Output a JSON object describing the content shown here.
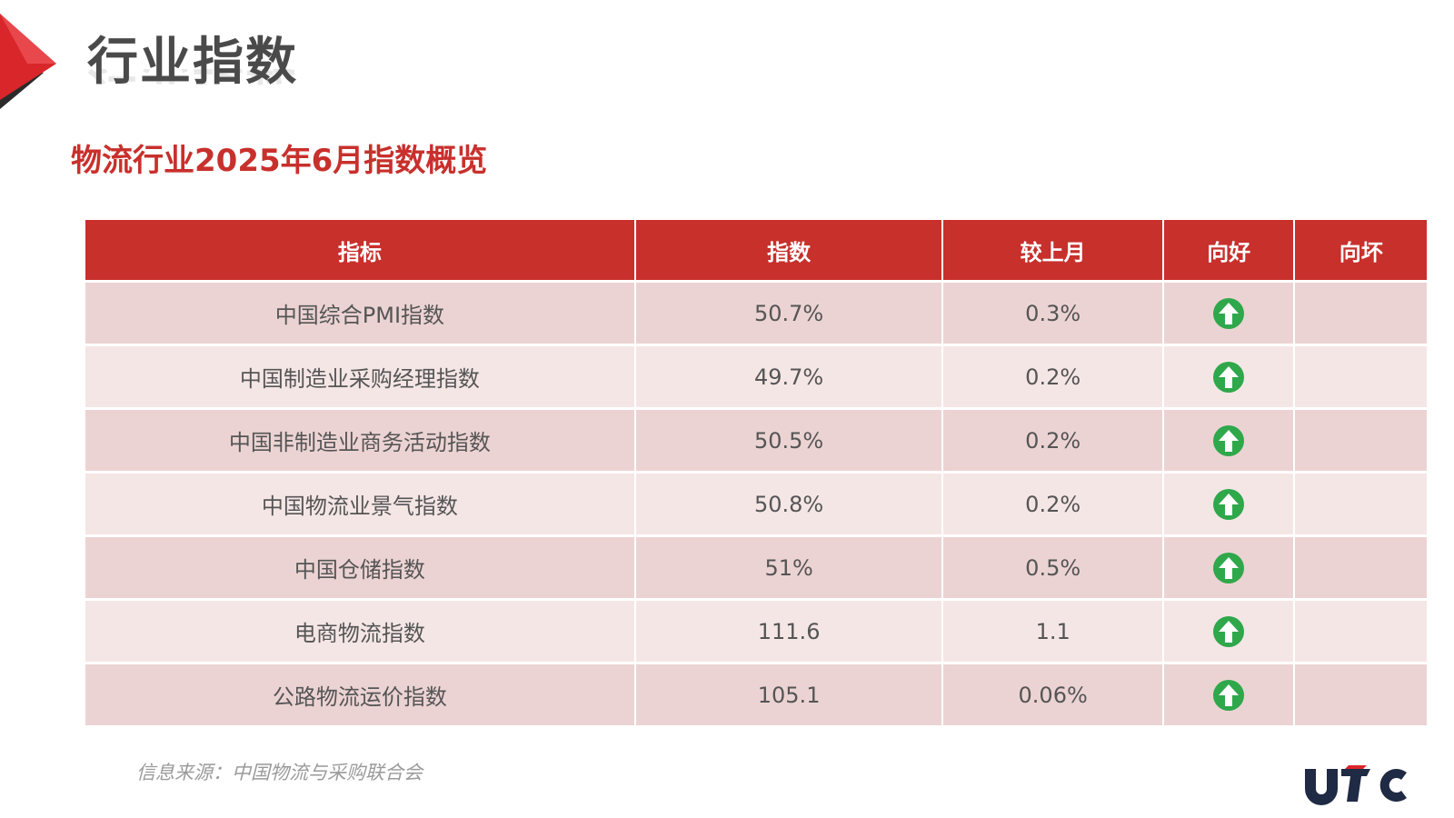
{
  "header": {
    "title": "行业指数",
    "subtitle": "物流行业2025年6月指数概览"
  },
  "table": {
    "columns": [
      "指标",
      "指数",
      "较上月",
      "向好",
      "向坏"
    ],
    "rows": [
      {
        "name": "中国综合PMI指数",
        "value": "50.7%",
        "change": "0.3%",
        "trend": "up"
      },
      {
        "name": "中国制造业采购经理指数",
        "value": "49.7%",
        "change": "0.2%",
        "trend": "up"
      },
      {
        "name": "中国非制造业商务活动指数",
        "value": "50.5%",
        "change": "0.2%",
        "trend": "up"
      },
      {
        "name": "中国物流业景气指数",
        "value": "50.8%",
        "change": "0.2%",
        "trend": "up"
      },
      {
        "name": "中国仓储指数",
        "value": "51%",
        "change": "0.5%",
        "trend": "up"
      },
      {
        "name": "电商物流指数",
        "value": "111.6",
        "change": "1.1",
        "trend": "up"
      },
      {
        "name": "公路物流运价指数",
        "value": "105.1",
        "change": "0.06%",
        "trend": "up"
      }
    ]
  },
  "footer": {
    "source": "信息来源：中国物流与采购联合会"
  },
  "logo": {
    "text": "UTC"
  },
  "icons": {
    "trend_up": "green-up-arrow-icon",
    "corner": "red-triangle-decoration"
  },
  "colors": {
    "accent": "#c8302c",
    "row_odd": "#ecd3d3",
    "row_even": "#f5e6e6",
    "arrow_green": "#2ea84a",
    "title_gray": "#4a4a4a",
    "logo_navy": "#1f2a44"
  }
}
